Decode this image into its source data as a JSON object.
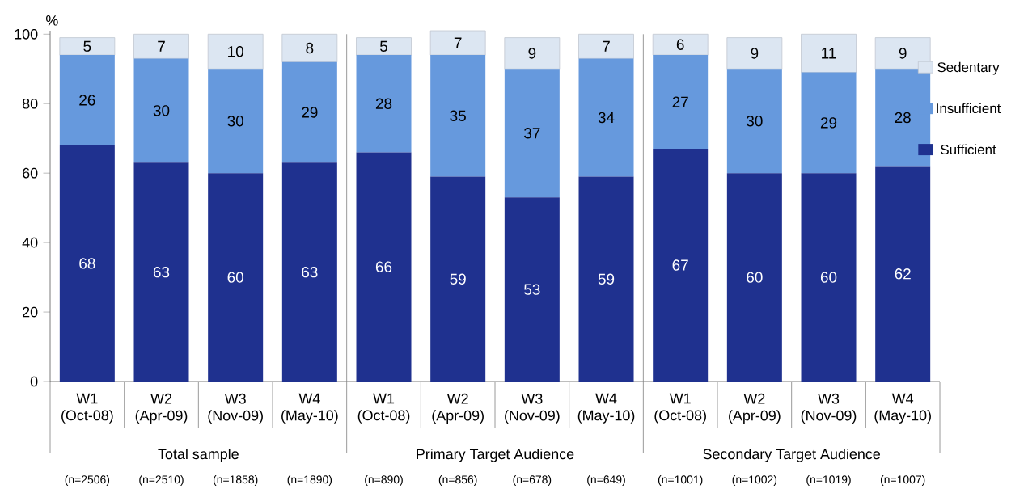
{
  "chart_data": {
    "type": "bar",
    "stacked": true,
    "ylabel": "%",
    "categories": [
      "W1 (Oct-08)",
      "W2 (Apr-09)",
      "W3 (Nov-09)",
      "W4 (May-10)",
      "W1 (Oct-08)",
      "W2 (Apr-09)",
      "W3 (Nov-09)",
      "W4 (May-10)",
      "W1 (Oct-08)",
      "W2 (Apr-09)",
      "W3 (Nov-09)",
      "W4 (May-10)"
    ],
    "series": [
      {
        "name": "Sufficient",
        "color": "#1f318f",
        "values": [
          68,
          63,
          60,
          63,
          66,
          59,
          53,
          59,
          67,
          60,
          60,
          62
        ]
      },
      {
        "name": "Insufficient",
        "color": "#6699dd",
        "values": [
          26,
          30,
          30,
          29,
          28,
          35,
          37,
          34,
          27,
          30,
          29,
          28
        ]
      },
      {
        "name": "Sedentary",
        "color": "#dce6f2",
        "values": [
          5,
          7,
          10,
          8,
          5,
          7,
          9,
          7,
          6,
          9,
          11,
          9
        ]
      }
    ],
    "ylim": [
      0,
      101
    ],
    "yticks": [
      0,
      20,
      40,
      60,
      80,
      100
    ],
    "data_labels": true,
    "legend": "right",
    "grid": false,
    "annotations": [
      "Total sample",
      "Primary Target Audience",
      "Secondary Target Audience",
      "(n=2506)",
      "(n=2510)",
      "(n=1858)",
      "(n=1890)",
      "(n=890)",
      "(n=856)",
      "(n=678)",
      "(n=649)",
      "(n=1001)",
      "(n=1002)",
      "(n=1019)",
      "(n=1007)"
    ]
  }
}
